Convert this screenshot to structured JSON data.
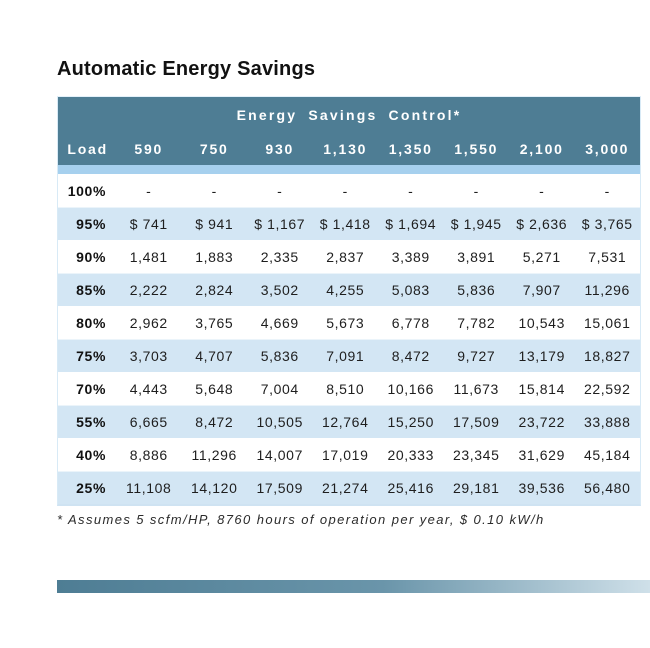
{
  "page": {
    "title": "Automatic Energy Savings"
  },
  "table": {
    "group_header": "Energy Savings Control*",
    "columns": [
      "Load",
      "590",
      "750",
      "930",
      "1,130",
      "1,350",
      "1,550",
      "2,100",
      "3,000"
    ],
    "rows": [
      {
        "load": "100%",
        "values": [
          "-",
          "-",
          "-",
          "-",
          "-",
          "-",
          "-",
          "-"
        ]
      },
      {
        "load": "95%",
        "values": [
          "$ 741",
          "$ 941",
          "$ 1,167",
          "$ 1,418",
          "$ 1,694",
          "$ 1,945",
          "$ 2,636",
          "$ 3,765"
        ]
      },
      {
        "load": "90%",
        "values": [
          "1,481",
          "1,883",
          "2,335",
          "2,837",
          "3,389",
          "3,891",
          "5,271",
          "7,531"
        ]
      },
      {
        "load": "85%",
        "values": [
          "2,222",
          "2,824",
          "3,502",
          "4,255",
          "5,083",
          "5,836",
          "7,907",
          "11,296"
        ]
      },
      {
        "load": "80%",
        "values": [
          "2,962",
          "3,765",
          "4,669",
          "5,673",
          "6,778",
          "7,782",
          "10,543",
          "15,061"
        ]
      },
      {
        "load": "75%",
        "values": [
          "3,703",
          "4,707",
          "5,836",
          "7,091",
          "8,472",
          "9,727",
          "13,179",
          "18,827"
        ]
      },
      {
        "load": "70%",
        "values": [
          "4,443",
          "5,648",
          "7,004",
          "8,510",
          "10,166",
          "11,673",
          "15,814",
          "22,592"
        ]
      },
      {
        "load": "55%",
        "values": [
          "6,665",
          "8,472",
          "10,505",
          "12,764",
          "15,250",
          "17,509",
          "23,722",
          "33,888"
        ]
      },
      {
        "load": "40%",
        "values": [
          "8,886",
          "11,296",
          "14,007",
          "17,019",
          "20,333",
          "23,345",
          "31,629",
          "45,184"
        ]
      },
      {
        "load": "25%",
        "values": [
          "11,108",
          "14,120",
          "17,509",
          "21,274",
          "25,416",
          "29,181",
          "39,536",
          "56,480"
        ]
      }
    ],
    "footnote": "* Assumes 5 scfm/HP, 8760 hours of operation per year, $ 0.10 kW/h"
  },
  "colors": {
    "header_bg": "#4e7d94",
    "header_text": "#ffffff",
    "row_alt_bg": "#d3e6f4",
    "accent_strip": "#a6d0ee",
    "text": "#1a1a1a",
    "bar_start": "#4e7d94",
    "bar_end": "#cfe0e9"
  }
}
